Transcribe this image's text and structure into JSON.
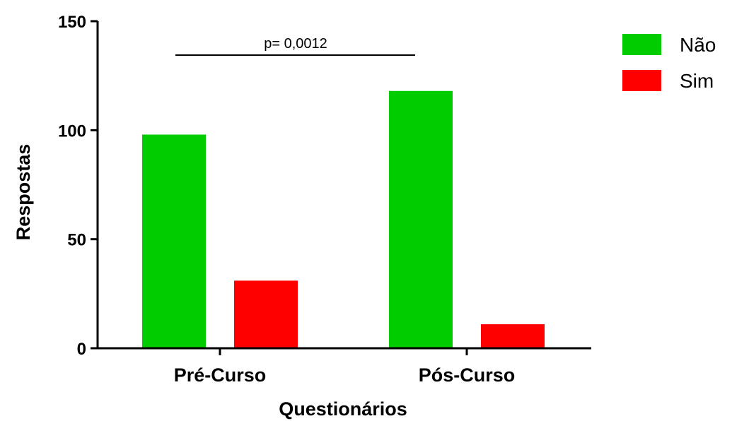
{
  "chart_data": {
    "type": "bar",
    "categories": [
      "Pré-Curso",
      "Pós-Curso"
    ],
    "series": [
      {
        "name": "Não",
        "values": [
          98,
          118
        ],
        "color": "#00cc00"
      },
      {
        "name": "Sim",
        "values": [
          31,
          11
        ],
        "color": "#ff0000"
      }
    ],
    "xlabel": "Questionários",
    "ylabel": "Respostas",
    "ylim": [
      0,
      150
    ],
    "yticks": [
      0,
      50,
      100,
      150
    ],
    "grid": false,
    "legend": "top-right",
    "annotation": {
      "text": "p= 0,0012",
      "spans_categories": [
        "Pré-Curso",
        "Pós-Curso"
      ]
    }
  }
}
